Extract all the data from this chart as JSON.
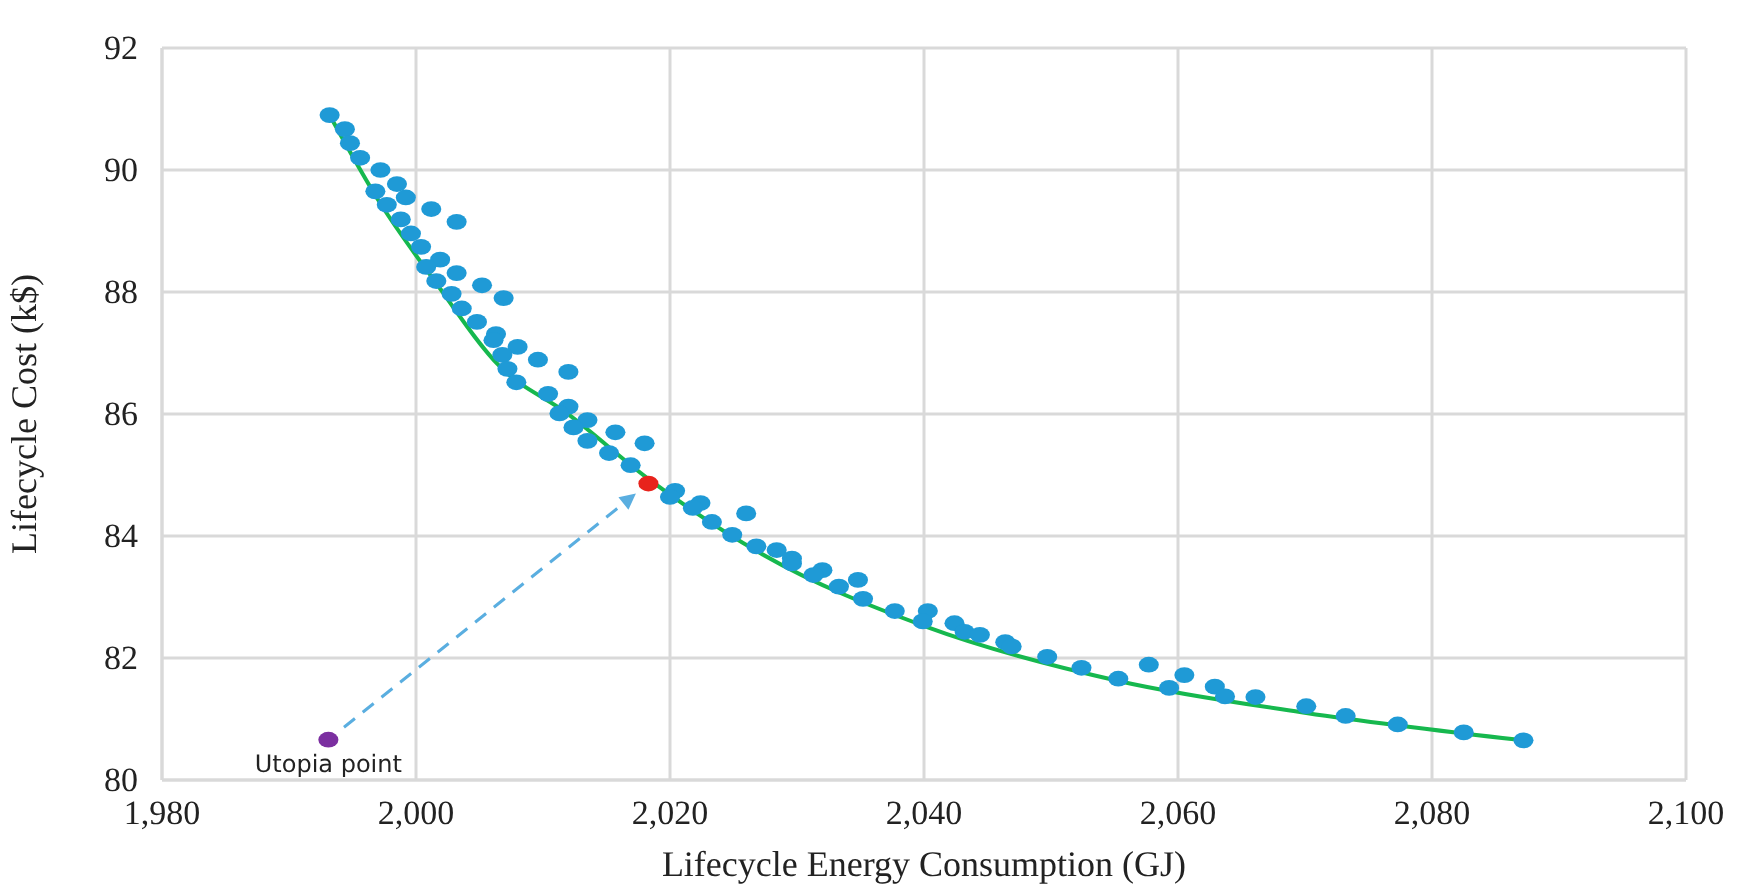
{
  "chart_data": {
    "type": "scatter",
    "xlabel": "Lifecycle Energy Consumption (GJ)",
    "ylabel": "Lifecycle Cost (k$)",
    "xlim": [
      1980,
      2100
    ],
    "ylim": [
      80,
      92
    ],
    "xticks": [
      {
        "value": 1980,
        "label": "1,980"
      },
      {
        "value": 2000,
        "label": "2,000"
      },
      {
        "value": 2020,
        "label": "2,020"
      },
      {
        "value": 2040,
        "label": "2,040"
      },
      {
        "value": 2060,
        "label": "2,060"
      },
      {
        "value": 2080,
        "label": "2,080"
      },
      {
        "value": 2100,
        "label": "2,100"
      }
    ],
    "yticks": [
      80,
      82,
      84,
      86,
      88,
      90,
      92
    ],
    "grid": true,
    "marker": "circle",
    "annotations": [
      {
        "text": "Utopia point",
        "x": 1993.1,
        "y": 80.66
      }
    ],
    "series": [
      {
        "color": "#1f9ad6",
        "x": [
          1993.2,
          1994.4,
          1994.8,
          1995.6,
          1997.2,
          1996.8,
          1998.5,
          1997.7,
          1999.2,
          2001.2,
          2003.2,
          1998.8,
          1999.6,
          2000.4,
          2001.9,
          2000.8,
          2003.2,
          2001.6,
          2005.2,
          2006.9,
          2002.8,
          2003.6,
          2004.8,
          2006.3,
          2006.1,
          2008.0,
          2009.6,
          2006.8,
          2007.2,
          2012.0,
          2007.9,
          2010.4,
          2012.0,
          2011.3,
          2013.5,
          2012.4,
          2015.7,
          2013.5,
          2015.2,
          2018.0,
          2016.9,
          2020.4,
          2020.0,
          2022.4,
          2021.8,
          2023.3,
          2026.0,
          2024.9,
          2026.8,
          2028.4,
          2029.6,
          2029.6,
          2032.0,
          2031.3,
          2033.3,
          2034.8,
          2035.2,
          2037.7,
          2040.3,
          2039.9,
          2042.4,
          2043.2,
          2044.4,
          2046.4,
          2046.9,
          2049.7,
          2052.4,
          2055.3,
          2057.7,
          2059.3,
          2060.5,
          2062.9,
          2063.7,
          2066.1,
          2070.1,
          2073.2,
          2077.3,
          2082.5,
          2087.2
        ],
        "values": [
          90.9,
          90.67,
          90.44,
          90.2,
          90.0,
          89.65,
          89.77,
          89.43,
          89.55,
          89.36,
          89.15,
          89.19,
          88.96,
          88.74,
          88.53,
          88.41,
          88.31,
          88.18,
          88.11,
          87.9,
          87.97,
          87.73,
          87.51,
          87.31,
          87.21,
          87.1,
          86.89,
          86.97,
          86.74,
          86.69,
          86.52,
          86.33,
          86.12,
          86.01,
          85.9,
          85.78,
          85.7,
          85.56,
          85.36,
          85.52,
          85.16,
          84.74,
          84.64,
          84.54,
          84.46,
          84.23,
          84.37,
          84.02,
          83.83,
          83.77,
          83.63,
          83.55,
          83.44,
          83.36,
          83.17,
          83.28,
          82.97,
          82.77,
          82.77,
          82.6,
          82.57,
          82.43,
          82.38,
          82.26,
          82.19,
          82.02,
          81.84,
          81.66,
          81.89,
          81.51,
          81.72,
          81.53,
          81.37,
          81.36,
          81.21,
          81.05,
          80.91,
          80.78,
          80.65
        ]
      },
      {
        "type": "line",
        "marker": "none",
        "color": "#16b84e",
        "x": [
          1993.2,
          1997.2,
          2001.4,
          2006.6,
          2011.9,
          2018.4,
          2027.1,
          2040.2,
          2055.4,
          2070.1,
          2087.2
        ],
        "values": [
          90.9,
          89.45,
          88.2,
          86.78,
          86.01,
          84.92,
          83.72,
          82.51,
          81.62,
          81.1,
          80.65
        ]
      },
      {
        "color": "#e8231c",
        "x": [
          2018.3
        ],
        "values": [
          84.86
        ]
      },
      {
        "color": "#7b2fa0",
        "x": [
          1993.1
        ],
        "values": [
          80.66
        ]
      }
    ]
  }
}
